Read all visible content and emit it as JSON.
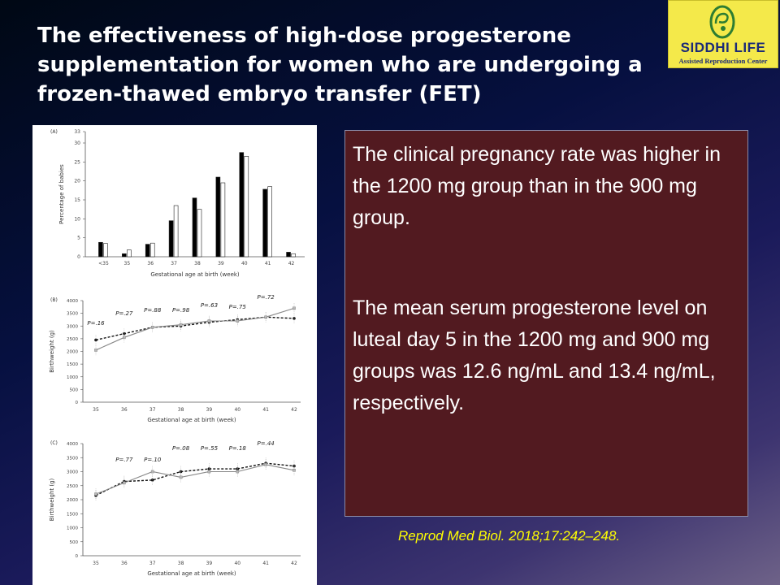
{
  "slide": {
    "title": "The effectiveness of high-dose progesterone supplementation for women who are undergoing a frozen-thawed embryo transfer (FET)",
    "logo": {
      "name": "SIDDHI LIFE",
      "subtitle": "Assisted Reproduction Center",
      "accent": "#f4e94a",
      "text_color": "#1b2a78"
    },
    "findings": [
      "The clinical pregnancy rate was higher in the 1200 mg group than in the 900 mg group.",
      "The mean serum progesterone level on luteal day 5 in the 1200 mg and 900 mg groups was 12.6 ng/mL and 13.4 ng/mL, respectively."
    ],
    "citation": "Reprod Med Biol. 2018;17:242–248.",
    "textbox_color": "#521a20"
  },
  "chart_data": [
    {
      "type": "bar",
      "panel": "(A)",
      "xlabel": "Gestational age at birth (week)",
      "ylabel": "Percentage of babies",
      "categories": [
        "<35",
        "35",
        "36",
        "37",
        "38",
        "39",
        "40",
        "41",
        "42"
      ],
      "yticks": [
        "0",
        "5",
        "10",
        "15",
        "20",
        "25",
        "30",
        "33"
      ],
      "ylim": [
        0,
        33
      ],
      "series": [
        {
          "color": "#000000",
          "values": [
            3.8,
            0.8,
            3.3,
            9.5,
            15.5,
            21,
            27.5,
            17.8,
            1.2
          ]
        },
        {
          "color": "#ffffff",
          "values": [
            3.5,
            1.8,
            3.6,
            13.5,
            12.5,
            19.5,
            26.5,
            18.5,
            0.8
          ]
        }
      ]
    },
    {
      "type": "line",
      "panel": "(B)",
      "xlabel": "Gestational age at birth (week)",
      "ylabel": "Birthweight (g)",
      "categories": [
        "35",
        "36",
        "37",
        "38",
        "39",
        "40",
        "41",
        "42"
      ],
      "yticks": [
        "0",
        "500",
        "1000",
        "1500",
        "2000",
        "2500",
        "3000",
        "3500",
        "4000"
      ],
      "ylim": [
        0,
        4000
      ],
      "p_values": [
        "P=.16",
        "P=.27",
        "P=.88",
        "P=.98",
        "P=.63",
        "P=.75",
        "P=.72"
      ],
      "series": [
        {
          "style": "dashed",
          "values": [
            2450,
            2700,
            2950,
            3000,
            3150,
            3250,
            3350,
            3300
          ]
        },
        {
          "style": "solid",
          "values": [
            2050,
            2550,
            2950,
            3050,
            3200,
            3200,
            3350,
            3700
          ]
        }
      ]
    },
    {
      "type": "line",
      "panel": "(C)",
      "xlabel": "Gestational age at birth (week)",
      "ylabel": "Birthweight (g)",
      "categories": [
        "35",
        "36",
        "37",
        "38",
        "39",
        "40",
        "41",
        "42"
      ],
      "yticks": [
        "0",
        "500",
        "1000",
        "1500",
        "2000",
        "2500",
        "3000",
        "3500",
        "4000"
      ],
      "ylim": [
        0,
        4000
      ],
      "p_values": [
        "P=.77",
        "P=.10",
        "P=.08",
        "P=.55",
        "P=.18",
        "P=.44"
      ],
      "series": [
        {
          "style": "dashed",
          "values": [
            2150,
            2650,
            2700,
            3000,
            3100,
            3100,
            3300,
            3200
          ]
        },
        {
          "style": "solid",
          "values": [
            2200,
            2600,
            3000,
            2800,
            3000,
            3000,
            3250,
            3050
          ]
        }
      ]
    }
  ]
}
